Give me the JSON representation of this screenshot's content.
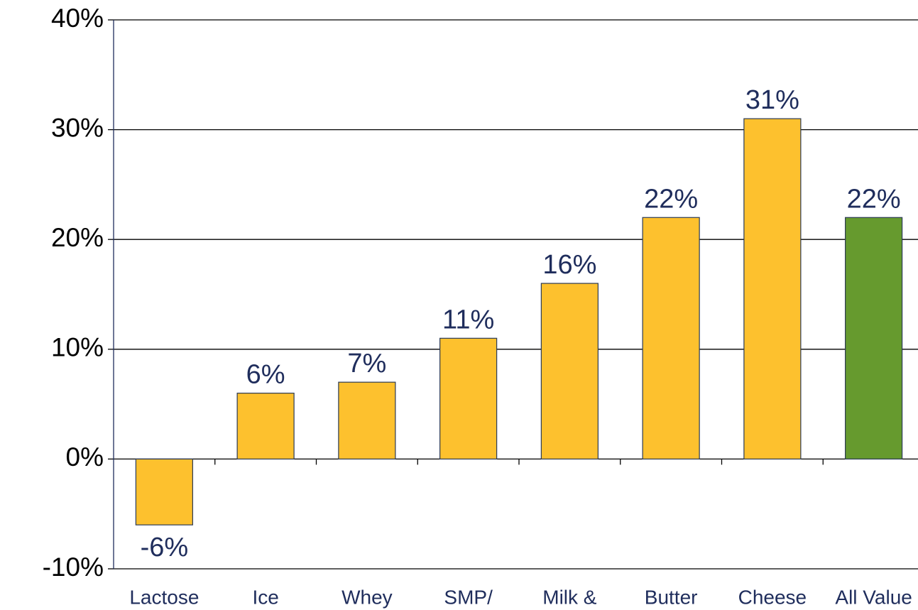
{
  "chart_data": {
    "type": "bar",
    "categories": [
      "Lactose",
      "Ice",
      "Whey",
      "SMP/",
      "Milk &",
      "Butter",
      "Cheese",
      "All Value"
    ],
    "values": [
      -6,
      6,
      7,
      11,
      16,
      22,
      31,
      22
    ],
    "value_labels": [
      "-6%",
      "6%",
      "7%",
      "11%",
      "16%",
      "22%",
      "31%",
      "22%"
    ],
    "colors": [
      "#fdc12e",
      "#fdc12e",
      "#fdc12e",
      "#fdc12e",
      "#fdc12e",
      "#fdc12e",
      "#fdc12e",
      "#669a2e"
    ],
    "ylim": [
      -10,
      40
    ],
    "yticks": [
      {
        "value": -10,
        "label": "-10%"
      },
      {
        "value": 0,
        "label": "0%"
      },
      {
        "value": 10,
        "label": "10%"
      },
      {
        "value": 20,
        "label": "20%"
      },
      {
        "value": 30,
        "label": "30%"
      },
      {
        "value": 40,
        "label": "40%"
      }
    ],
    "grid": true
  }
}
